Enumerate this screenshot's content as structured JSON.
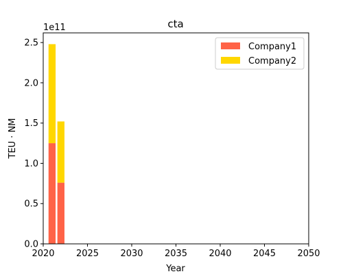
{
  "chart_data": {
    "type": "bar",
    "stacked": true,
    "title": "cta",
    "xlabel": "Year",
    "ylabel": "TEU · NM",
    "offset_text": "1e11",
    "x": [
      2021,
      2022
    ],
    "series": [
      {
        "name": "Company1",
        "color": "#ff6347",
        "values": [
          125000000000,
          76000000000
        ]
      },
      {
        "name": "Company2",
        "color": "#ffd700",
        "values": [
          123000000000,
          76000000000
        ]
      }
    ],
    "xlim": [
      2020,
      2050
    ],
    "ylim": [
      0,
      262000000000
    ],
    "xticks": [
      2020,
      2025,
      2030,
      2035,
      2040,
      2045,
      2050
    ],
    "yticks": [
      0,
      50000000000,
      100000000000,
      150000000000,
      200000000000,
      250000000000
    ],
    "ytick_labels": [
      "0.0",
      "0.5",
      "1.0",
      "1.5",
      "2.0",
      "2.5"
    ],
    "bar_width_years": 0.8,
    "grid": false,
    "legend_position": "upper right"
  }
}
